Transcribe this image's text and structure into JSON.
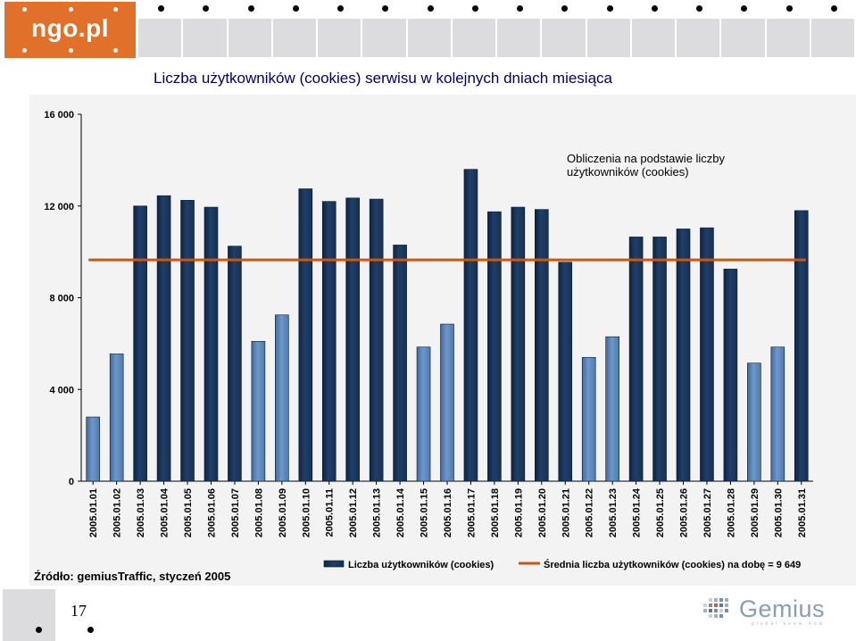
{
  "logo": {
    "text": "ngo.pl"
  },
  "header": {
    "title": "Liczba użytkowników (cookies) serwisu w kolejnych dniach miesiąca"
  },
  "chart_data": {
    "type": "bar",
    "annotation": "Obliczenia na podstawie liczby użytkowników (cookies)",
    "source": "Źródło: gemiusTraffic, styczeń 2005",
    "ylim": [
      0,
      16000
    ],
    "yticks": [
      0,
      4000,
      8000,
      12000,
      16000
    ],
    "ytick_labels": [
      "0",
      "4 000",
      "8 000",
      "12 000",
      "16 000"
    ],
    "categories": [
      "2005.01.01",
      "2005.01.02",
      "2005.01.03",
      "2005.01.04",
      "2005.01.05",
      "2005.01.06",
      "2005.01.07",
      "2005.01.08",
      "2005.01.09",
      "2005.01.10",
      "2005.01.11",
      "2005.01.12",
      "2005.01.13",
      "2005.01.14",
      "2005.01.15",
      "2005.01.16",
      "2005.01.17",
      "2005.01.18",
      "2005.01.19",
      "2005.01.20",
      "2005.01.21",
      "2005.01.22",
      "2005.01.23",
      "2005.01.24",
      "2005.01.25",
      "2005.01.26",
      "2005.01.27",
      "2005.01.28",
      "2005.01.29",
      "2005.01.30",
      "2005.01.31"
    ],
    "weekend": [
      true,
      true,
      false,
      false,
      false,
      false,
      false,
      true,
      true,
      false,
      false,
      false,
      false,
      false,
      true,
      true,
      false,
      false,
      false,
      false,
      false,
      true,
      true,
      false,
      false,
      false,
      false,
      false,
      true,
      true,
      false
    ],
    "series": [
      {
        "name": "Liczba użytkowników (cookies)",
        "type": "bar",
        "values": [
          2800,
          5550,
          12000,
          12450,
          12250,
          11950,
          10250,
          6100,
          7250,
          12750,
          12200,
          12350,
          12300,
          10300,
          5850,
          6850,
          13600,
          11750,
          11950,
          11850,
          9550,
          5400,
          6300,
          10650,
          10650,
          11000,
          11050,
          9250,
          5150,
          5850,
          11800
        ]
      },
      {
        "name": "Średnia liczba użytkowników (cookies) na dobę = 9 649",
        "type": "line",
        "value": 9649
      }
    ],
    "colors": {
      "weekday_bar": "#1f3f6a",
      "weekend_bar": "#6f98c9",
      "average_line": "#c55a11"
    }
  },
  "footer": {
    "page_number": "17",
    "brand": "Gemius",
    "brand_tagline": "global know-how"
  }
}
